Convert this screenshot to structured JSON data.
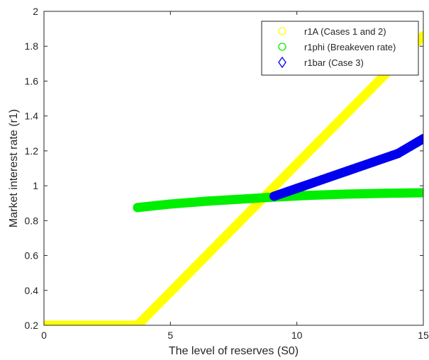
{
  "chart_data": {
    "type": "line",
    "title": "",
    "xlabel": "The level of reserves (S0)",
    "ylabel": "Market interest rate (r1)",
    "xlim": [
      0,
      15
    ],
    "ylim": [
      0.2,
      2
    ],
    "xticks": [
      0,
      5,
      10,
      15
    ],
    "yticks": [
      0.2,
      0.4,
      0.6,
      0.8,
      1,
      1.2,
      1.4,
      1.6,
      1.8,
      2
    ],
    "xtick_labels": [
      "0",
      "5",
      "10",
      "15"
    ],
    "ytick_labels": [
      "0.2",
      "0.4",
      "0.6",
      "0.8",
      "1",
      "1.2",
      "1.4",
      "1.6",
      "1.8",
      "2"
    ],
    "grid": false,
    "legend_position": "top-right",
    "series": [
      {
        "name": "r1A (Cases 1 and 2)",
        "color": "#ffff00",
        "marker": "circle",
        "x": [
          0,
          3.7,
          15
        ],
        "y": [
          0.2,
          0.2,
          1.86
        ]
      },
      {
        "name": "r1phi (Breakeven rate)",
        "color": "#00ee00",
        "marker": "circle",
        "x": [
          3.7,
          5,
          6.5,
          8,
          9.1,
          10.5,
          12,
          13.5,
          15
        ],
        "y": [
          0.875,
          0.895,
          0.912,
          0.925,
          0.935,
          0.945,
          0.952,
          0.957,
          0.96
        ]
      },
      {
        "name": "r1bar (Case 3)",
        "color": "#0000ee",
        "marker": "diamond",
        "x": [
          9.1,
          10,
          11,
          12,
          13,
          14,
          15
        ],
        "y": [
          0.94,
          0.985,
          1.035,
          1.085,
          1.135,
          1.185,
          1.27
        ]
      }
    ]
  }
}
